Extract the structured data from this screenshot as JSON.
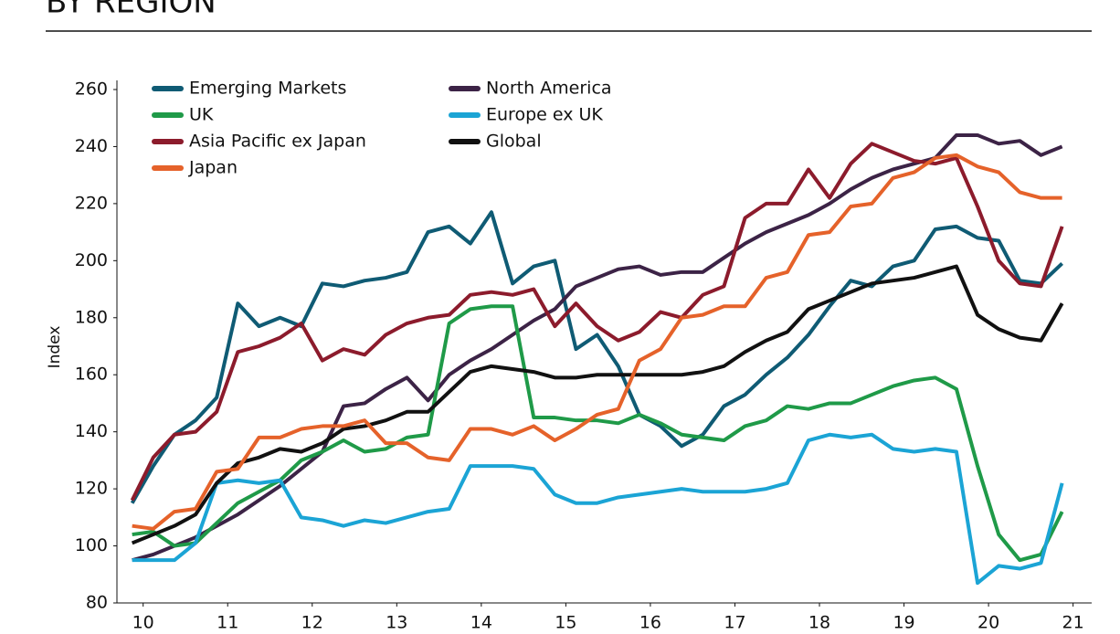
{
  "chart_data": {
    "type": "line",
    "title": "BY REGION",
    "y_label": "Index",
    "x": [
      9.87,
      10.12,
      10.37,
      10.62,
      10.87,
      11.12,
      11.37,
      11.62,
      11.87,
      12.12,
      12.37,
      12.62,
      12.87,
      13.12,
      13.37,
      13.62,
      13.87,
      14.12,
      14.37,
      14.62,
      14.87,
      15.12,
      15.37,
      15.62,
      15.87,
      16.12,
      16.37,
      16.62,
      16.87,
      17.12,
      17.37,
      17.62,
      17.87,
      18.12,
      18.37,
      18.62,
      18.87,
      19.12,
      19.37,
      19.62,
      19.87,
      20.12,
      20.37,
      20.62,
      20.87
    ],
    "xlim": [
      9.69,
      21.22
    ],
    "xticks": [
      10,
      11,
      12,
      13,
      14,
      15,
      16,
      17,
      18,
      19,
      20,
      21
    ],
    "ylim": [
      80,
      260
    ],
    "yticks": [
      80,
      100,
      120,
      140,
      160,
      180,
      200,
      220,
      240,
      260
    ],
    "grid": false,
    "legend": "top-left",
    "series": [
      {
        "name": "Emerging Markets",
        "color": "#0f5b74",
        "values": [
          115,
          128,
          139,
          144,
          152,
          185,
          177,
          180,
          177,
          192,
          191,
          193,
          194,
          196,
          210,
          212,
          206,
          217,
          192,
          198,
          200,
          169,
          174,
          163,
          146,
          142,
          135,
          139,
          149,
          153,
          160,
          166,
          174,
          184,
          193,
          191,
          198,
          200,
          211,
          212,
          208,
          207,
          193,
          192,
          199
        ]
      },
      {
        "name": "North America",
        "color": "#3c2346",
        "values": [
          95,
          97,
          100,
          103,
          107,
          111,
          116,
          121,
          127,
          133,
          149,
          150,
          155,
          159,
          151,
          160,
          165,
          169,
          174,
          179,
          183,
          191,
          194,
          197,
          198,
          195,
          196,
          196,
          201,
          206,
          210,
          213,
          216,
          220,
          225,
          229,
          232,
          234,
          236,
          244,
          244,
          241,
          242,
          237,
          240
        ]
      },
      {
        "name": "UK",
        "color": "#1f9a48",
        "values": [
          104,
          105,
          100,
          101,
          108,
          115,
          119,
          123,
          130,
          133,
          137,
          133,
          134,
          138,
          139,
          178,
          183,
          184,
          184,
          145,
          145,
          144,
          144,
          143,
          146,
          143,
          139,
          138,
          137,
          142,
          144,
          149,
          148,
          150,
          150,
          153,
          156,
          158,
          159,
          155,
          128,
          104,
          95,
          97,
          112
        ]
      },
      {
        "name": "Europe ex UK",
        "color": "#1ba4d5",
        "values": [
          95,
          95,
          95,
          101,
          122,
          123,
          122,
          123,
          110,
          109,
          107,
          109,
          108,
          110,
          112,
          113,
          128,
          128,
          128,
          127,
          118,
          115,
          115,
          117,
          118,
          119,
          120,
          119,
          119,
          119,
          120,
          122,
          137,
          139,
          138,
          139,
          134,
          133,
          134,
          133,
          87,
          93,
          92,
          94,
          122
        ]
      },
      {
        "name": "Asia Pacific ex Japan",
        "color": "#8c1b2c",
        "values": [
          116,
          131,
          139,
          140,
          147,
          168,
          170,
          173,
          178,
          165,
          169,
          167,
          174,
          178,
          180,
          181,
          188,
          189,
          188,
          190,
          177,
          185,
          177,
          172,
          175,
          182,
          180,
          188,
          191,
          215,
          220,
          220,
          232,
          222,
          234,
          241,
          238,
          235,
          234,
          236,
          219,
          200,
          192,
          191,
          212
        ]
      },
      {
        "name": "Global",
        "color": "#111111",
        "values": [
          101,
          104,
          107,
          111,
          122,
          129,
          131,
          134,
          133,
          136,
          141,
          142,
          144,
          147,
          147,
          154,
          161,
          163,
          162,
          161,
          159,
          159,
          160,
          160,
          160,
          160,
          160,
          161,
          163,
          168,
          172,
          175,
          183,
          186,
          189,
          192,
          193,
          194,
          196,
          198,
          181,
          176,
          173,
          172,
          185
        ]
      },
      {
        "name": "Japan",
        "color": "#e5622a",
        "values": [
          107,
          106,
          112,
          113,
          126,
          127,
          138,
          138,
          141,
          142,
          142,
          144,
          136,
          136,
          131,
          130,
          141,
          141,
          139,
          142,
          137,
          141,
          146,
          148,
          165,
          169,
          180,
          181,
          184,
          184,
          194,
          196,
          209,
          210,
          219,
          220,
          229,
          231,
          236,
          237,
          233,
          231,
          224,
          222,
          222
        ]
      }
    ]
  }
}
